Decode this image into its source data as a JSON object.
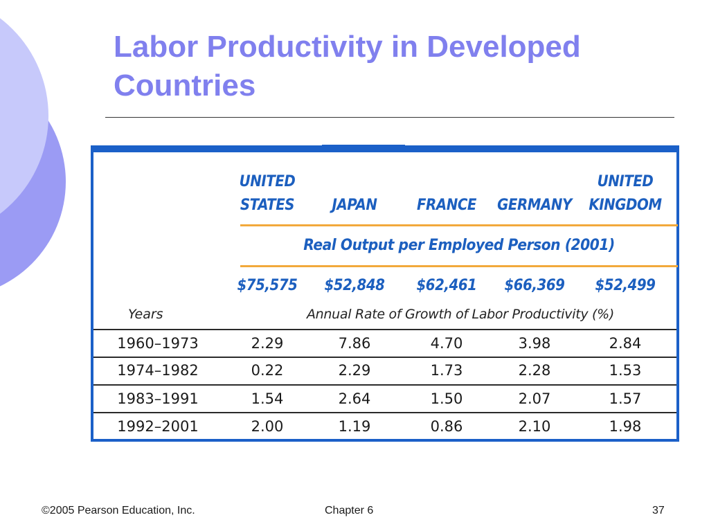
{
  "slide": {
    "title": "Labor Productivity in Developed Countries",
    "footer": {
      "copyright": "©2005 Pearson Education, Inc.",
      "chapter": "Chapter 6",
      "page_number": "37"
    }
  },
  "table": {
    "countries": [
      {
        "line1": "UNITED",
        "line2": "STATES"
      },
      {
        "line1": "",
        "line2": "JAPAN"
      },
      {
        "line1": "",
        "line2": "FRANCE"
      },
      {
        "line1": "",
        "line2": "GERMANY"
      },
      {
        "line1": "UNITED",
        "line2": "KINGDOM"
      }
    ],
    "real_output_title": "Real Output per Employed Person (2001)",
    "real_output_values": [
      "$75,575",
      "$52,848",
      "$62,461",
      "$66,369",
      "$52,499"
    ],
    "years_label": "Years",
    "growth_label": "Annual Rate of Growth of Labor Productivity (%)",
    "rows": [
      {
        "years": "1960–1973",
        "values": [
          "2.29",
          "7.86",
          "4.70",
          "3.98",
          "2.84"
        ]
      },
      {
        "years": "1974–1982",
        "values": [
          "0.22",
          "2.29",
          "1.73",
          "2.28",
          "1.53"
        ]
      },
      {
        "years": "1983–1991",
        "values": [
          "1.54",
          "2.64",
          "1.50",
          "2.07",
          "1.57"
        ]
      },
      {
        "years": "1992–2001",
        "values": [
          "2.00",
          "1.19",
          "0.86",
          "2.10",
          "1.98"
        ]
      }
    ]
  },
  "colors": {
    "title": "#8080ee",
    "table_border": "#1b60c8",
    "country_text": "#1c5fbf",
    "orange_rule": "#f2a93b"
  }
}
